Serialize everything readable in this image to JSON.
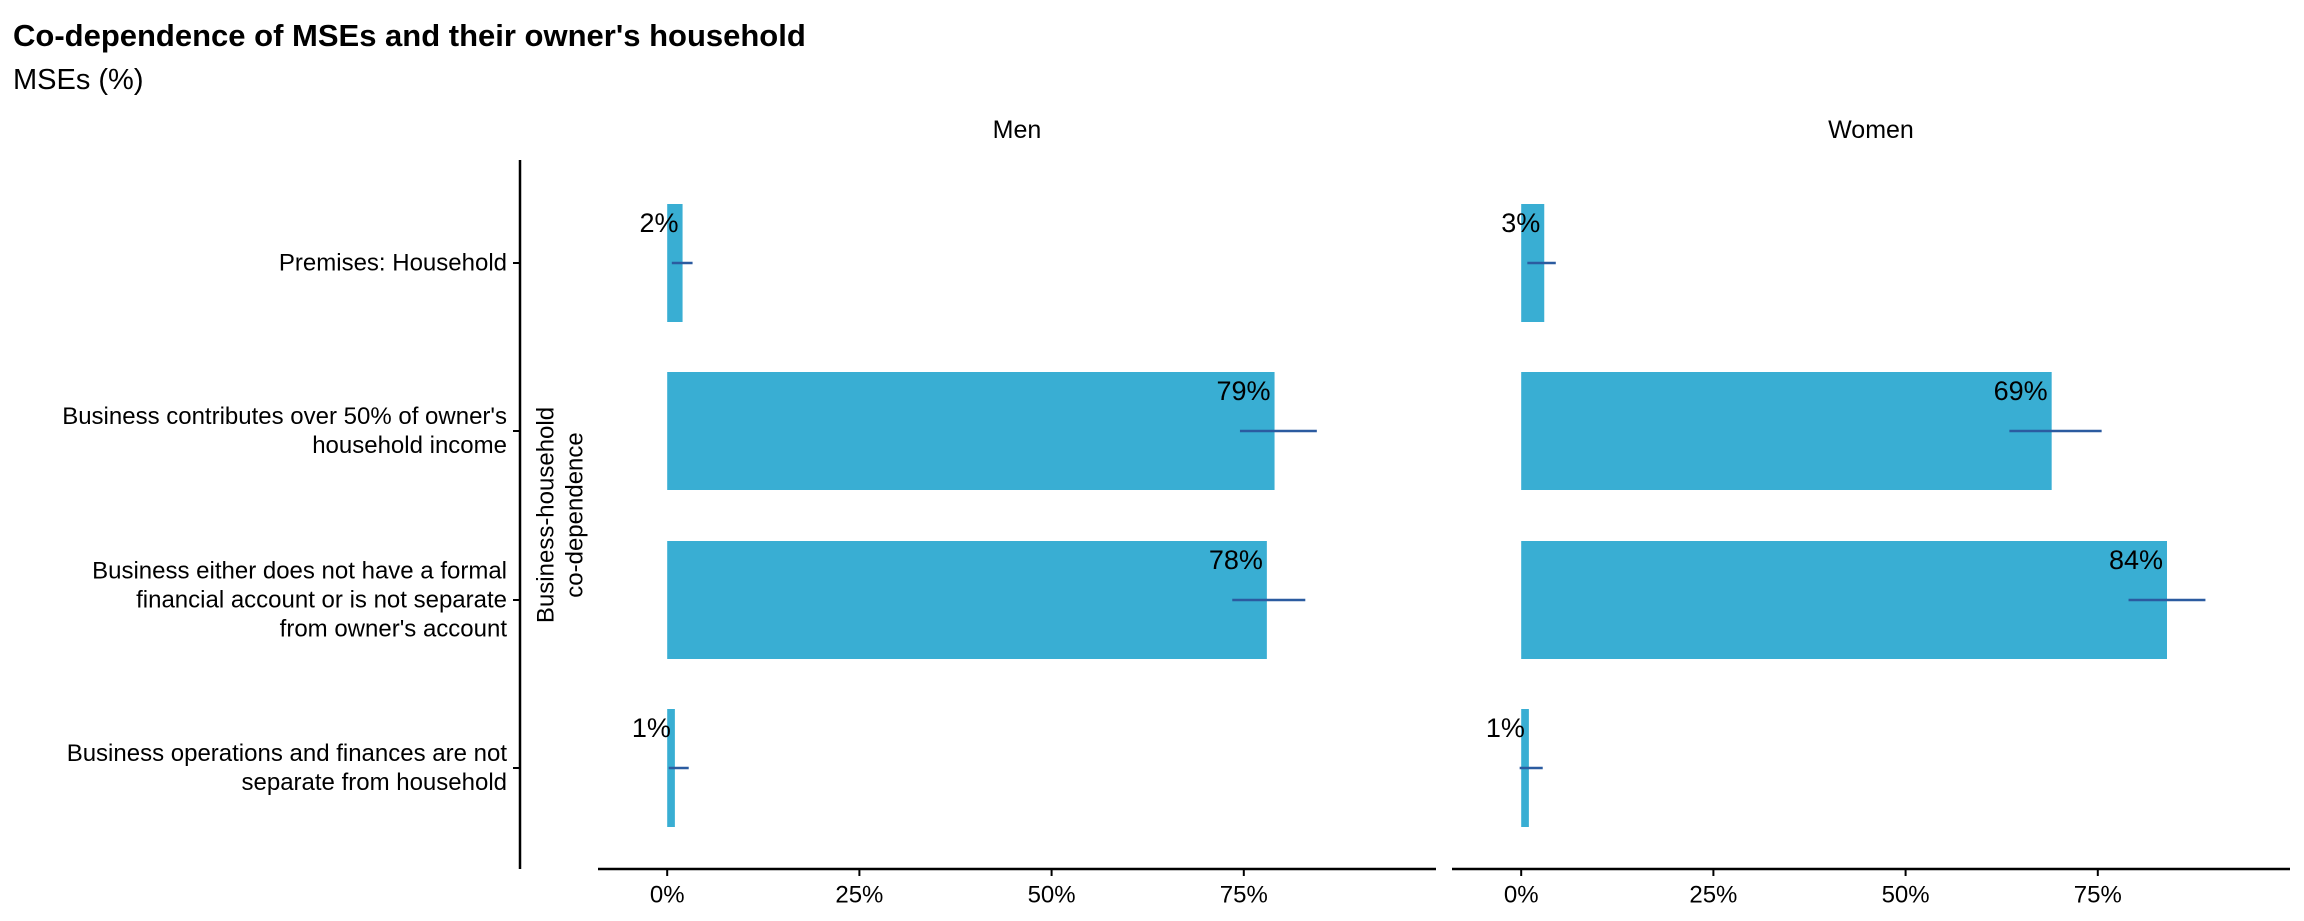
{
  "title": "Co-dependence of MSEs and their owner's household",
  "subtitle": "MSEs (%)",
  "colors": {
    "bar": "#39AED3",
    "error_bar": "#2B5BA0",
    "axis": "#000000"
  },
  "chart_data": {
    "type": "bar",
    "orientation": "horizontal",
    "ylabel": "Business-household co-dependence",
    "categories": [
      "Premises: Household",
      "Business contributes over 50% of owner's household income",
      "Business either does not have a formal financial account or is not separate from owner's account",
      "Business operations and finances are not separate from household"
    ],
    "category_lines": [
      [
        "Premises: Household"
      ],
      [
        "Business contributes over 50% of owner's",
        "household income"
      ],
      [
        "Business either does not have a formal",
        "financial account or is not separate",
        "from owner's account"
      ],
      [
        "Business operations and finances are not",
        "separate from household"
      ]
    ],
    "xlim": [
      -9,
      100
    ],
    "x_ticks": [
      0,
      25,
      50,
      75
    ],
    "x_tick_labels": [
      "0%",
      "25%",
      "50%",
      "75%"
    ],
    "grid": false,
    "panels": [
      {
        "name": "Men",
        "values": [
          2,
          79,
          78,
          1
        ],
        "labels": [
          "2%",
          "79%",
          "78%",
          "1%"
        ],
        "error_low": [
          0.6,
          74.5,
          73.5,
          0.2
        ],
        "error_high": [
          3.3,
          84.5,
          83.0,
          2.8
        ]
      },
      {
        "name": "Women",
        "values": [
          3,
          69,
          84,
          1
        ],
        "labels": [
          "3%",
          "69%",
          "84%",
          "1%"
        ],
        "error_low": [
          0.8,
          63.5,
          79.0,
          -0.2
        ],
        "error_high": [
          4.5,
          75.5,
          89.0,
          2.8
        ]
      }
    ]
  }
}
